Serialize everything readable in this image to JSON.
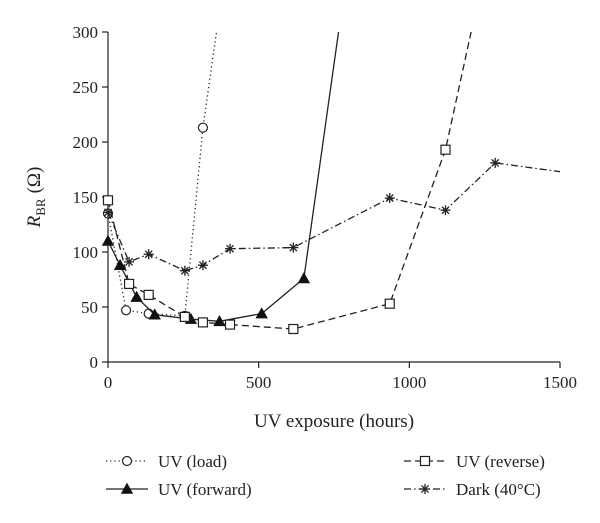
{
  "chart_data": {
    "type": "line",
    "title": "",
    "xlabel": "UV exposure (hours)",
    "ylabel_main": "R",
    "ylabel_sub": "BR",
    "ylabel_unit": "(Ω)",
    "xlim": [
      0,
      1500
    ],
    "ylim": [
      0,
      300
    ],
    "xticks": [
      0,
      500,
      1000,
      1500
    ],
    "yticks": [
      0,
      50,
      100,
      150,
      200,
      250,
      300
    ],
    "grid": false,
    "legend_position": "bottom",
    "series": [
      {
        "name": "UV (load)",
        "line_style": "dotted",
        "marker": "open-circle",
        "points": [
          [
            0,
            135
          ],
          [
            60,
            47
          ],
          [
            135,
            44
          ],
          [
            255,
            42
          ],
          [
            315,
            213
          ]
        ],
        "extends_to": [
          360,
          300
        ]
      },
      {
        "name": "UV (forward)",
        "line_style": "solid",
        "marker": "filled-triangle",
        "points": [
          [
            0,
            110
          ],
          [
            40,
            88
          ],
          [
            95,
            59
          ],
          [
            155,
            43
          ],
          [
            275,
            39
          ],
          [
            370,
            37
          ],
          [
            510,
            44
          ],
          [
            650,
            76
          ]
        ],
        "extends_to": [
          765,
          300
        ]
      },
      {
        "name": "UV (reverse)",
        "line_style": "dashed",
        "marker": "open-square",
        "points": [
          [
            0,
            147
          ],
          [
            70,
            71
          ],
          [
            135,
            61
          ],
          [
            255,
            41
          ],
          [
            315,
            36
          ],
          [
            405,
            34
          ],
          [
            615,
            30
          ],
          [
            935,
            53
          ],
          [
            1120,
            193
          ]
        ],
        "extends_to": [
          1205,
          300
        ]
      },
      {
        "name": "Dark (40°C)",
        "line_style": "dash-dot",
        "marker": "asterisk",
        "points": [
          [
            0,
            136
          ],
          [
            70,
            91
          ],
          [
            135,
            98
          ],
          [
            255,
            83
          ],
          [
            315,
            88
          ],
          [
            405,
            103
          ],
          [
            615,
            104
          ],
          [
            935,
            149
          ],
          [
            1120,
            138
          ],
          [
            1285,
            181
          ]
        ],
        "extends_to": [
          1500,
          173
        ]
      }
    ]
  }
}
